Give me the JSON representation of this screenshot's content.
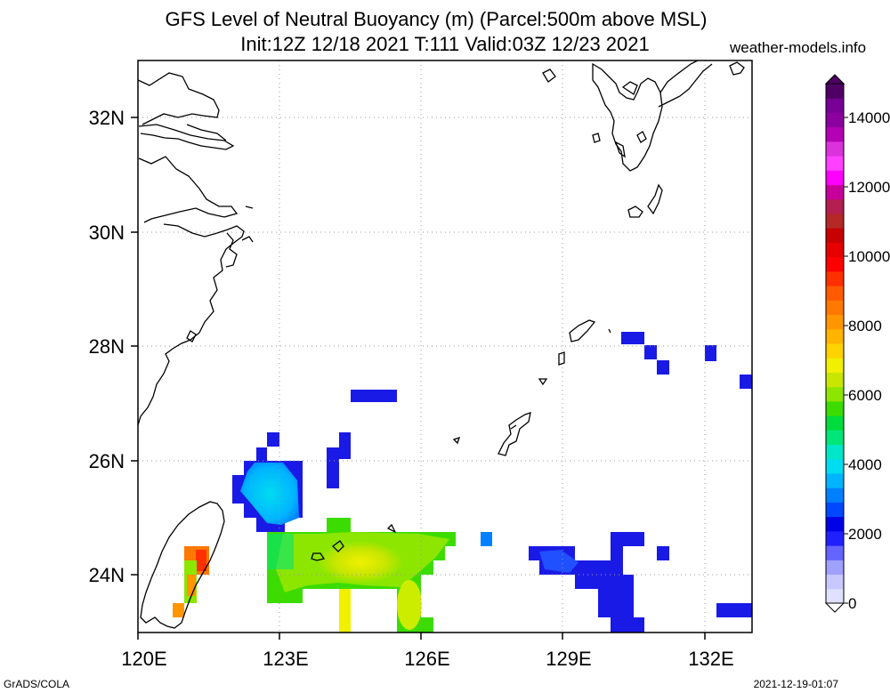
{
  "header": {
    "title_line1": "GFS Level of Neutral Buoyancy (m) (Parcel:500m above MSL)",
    "title_line2": "Init:12Z 12/18 2021 T:111 Valid:03Z 12/23 2021",
    "site": "weather-models.info"
  },
  "footer": {
    "left": "GrADS/COLA",
    "right": "2021-12-19-01:07"
  },
  "map": {
    "lon_range": [
      120,
      133
    ],
    "lat_range": [
      23,
      33
    ],
    "x_ticks": [
      "120E",
      "123E",
      "126E",
      "129E",
      "132E"
    ],
    "y_ticks": [
      "32N",
      "30N",
      "28N",
      "26N",
      "24N"
    ],
    "grid": "dotted"
  },
  "colorbar": {
    "labels": [
      "14000",
      "12000",
      "10000",
      "8000",
      "6000",
      "4000",
      "2000",
      "0"
    ],
    "colors": [
      "#e0e0ff",
      "#c8c8ff",
      "#a0a0ff",
      "#6464ff",
      "#2020ff",
      "#0000e6",
      "#0048ff",
      "#0080ff",
      "#00b4ff",
      "#00dcf0",
      "#00e6c8",
      "#00e678",
      "#00dc3c",
      "#3cdc00",
      "#8ce600",
      "#c8e600",
      "#f0f000",
      "#ffd200",
      "#ffb400",
      "#ff9600",
      "#ff7800",
      "#ff5a00",
      "#ff3000",
      "#ff0000",
      "#e60000",
      "#c80000",
      "#b42828",
      "#b41e50",
      "#c8009b",
      "#ff00ff",
      "#ff40ff",
      "#dc32dc",
      "#b400b4",
      "#8c00a0",
      "#780096",
      "#500064"
    ]
  }
}
